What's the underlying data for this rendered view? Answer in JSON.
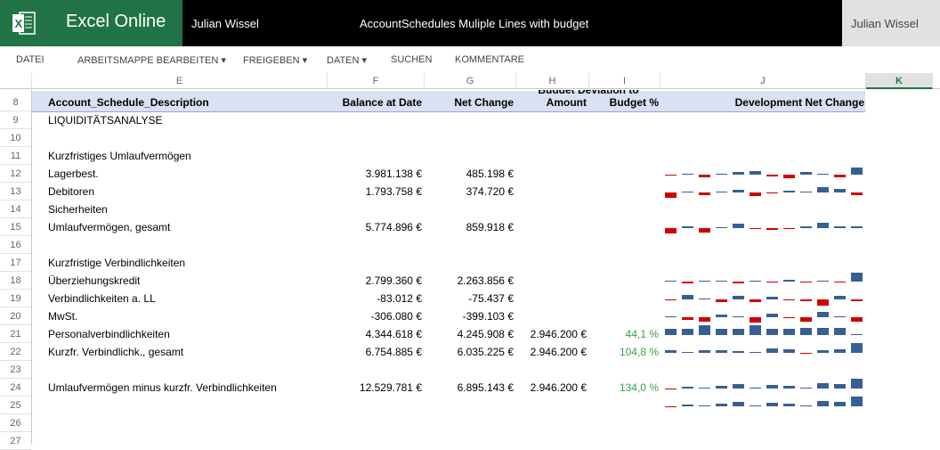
{
  "app": {
    "name": "Excel Online",
    "user": "Julian Wissel",
    "document_title": "AccountSchedules Muliple Lines with budget",
    "user_button": "Julian Wissel"
  },
  "menu": [
    {
      "label": "DATEI"
    },
    {
      "label": "ARBEITSMAPPE BEARBEITEN ▾"
    },
    {
      "label": "FREIGEBEN ▾"
    },
    {
      "label": "DATEN ▾"
    },
    {
      "label": "SUCHEN"
    },
    {
      "label": "KOMMENTARE"
    }
  ],
  "columns": [
    "E",
    "F",
    "G",
    "H",
    "I",
    "J",
    "K"
  ],
  "selected_column": "K",
  "row_numbers": [
    "8",
    "9",
    "10",
    "11",
    "12",
    "13",
    "14",
    "15",
    "16",
    "17",
    "18",
    "19",
    "20",
    "21",
    "22",
    "23",
    "24",
    "25",
    "26",
    "27"
  ],
  "header": {
    "description": "Account_Schedule_Description",
    "balance": "Balance at Date",
    "net_change": "Net Change",
    "budget_group": "Budget Deviation to",
    "amount": "Amount",
    "budget_pct": "Budget %",
    "development": "Development Net Change"
  },
  "rows": [
    {
      "row": "9",
      "desc": "LIQUIDITÄTSANALYSE"
    },
    {
      "row": "10",
      "desc": ""
    },
    {
      "row": "11",
      "desc": "Kurzfristiges Umlaufvermögen"
    },
    {
      "row": "12",
      "desc": "Lagerbest.",
      "balance": "3.981.138 €",
      "net": "485.198 €",
      "spark": [
        -1,
        1,
        -3,
        1,
        3,
        4,
        -2,
        -4,
        3,
        1,
        -3,
        8
      ]
    },
    {
      "row": "13",
      "desc": "Debitoren",
      "balance": "1.793.758 €",
      "net": "374.720 €",
      "spark": [
        -6,
        1,
        -3,
        1,
        3,
        -4,
        -1,
        2,
        1,
        6,
        4,
        -3
      ]
    },
    {
      "row": "14",
      "desc": "Sicherheiten"
    },
    {
      "row": "15",
      "desc": "Umlaufvermögen, gesamt",
      "balance": "5.774.896 €",
      "net": "859.918 €",
      "spark": [
        -6,
        2,
        -5,
        1,
        5,
        -1,
        -2,
        -1,
        2,
        6,
        2,
        2
      ]
    },
    {
      "row": "16",
      "desc": ""
    },
    {
      "row": "17",
      "desc": "Kurzfristige Verbindlichkeiten"
    },
    {
      "row": "18",
      "desc": "Überziehungskredit",
      "balance": "2.799.360 €",
      "net": "2.263.856 €",
      "spark": [
        1,
        -2,
        1,
        1,
        -2,
        1,
        -1,
        2,
        -1,
        1,
        -1,
        10
      ]
    },
    {
      "row": "19",
      "desc": "Verbindlichkeiten a. LL",
      "balance": "-83.012 €",
      "net": "-75.437 €",
      "spark": [
        -1,
        5,
        1,
        -3,
        4,
        -3,
        3,
        -1,
        -2,
        -7,
        4,
        -2
      ]
    },
    {
      "row": "20",
      "desc": "MwSt.",
      "balance": "-306.080 €",
      "net": "-399.103 €",
      "spark": [
        1,
        -3,
        -5,
        3,
        1,
        -6,
        4,
        -1,
        -5,
        6,
        1,
        -5
      ]
    },
    {
      "row": "21",
      "desc": "Personalverbindlichkeiten",
      "balance": "4.344.618 €",
      "net": "4.245.908 €",
      "amount": "2.946.200 €",
      "pct": "44,1 %",
      "spark": [
        7,
        7,
        12,
        7,
        7,
        12,
        7,
        7,
        8,
        8,
        8,
        1
      ]
    },
    {
      "row": "22",
      "desc": "Kurzfr. Verbindlichk., gesamt",
      "balance": "6.754.885 €",
      "net": "6.035.225 €",
      "amount": "2.946.200 €",
      "pct": "104,8 %",
      "spark": [
        3,
        1,
        3,
        3,
        2,
        1,
        5,
        4,
        -1,
        3,
        4,
        11
      ]
    },
    {
      "row": "23",
      "desc": ""
    },
    {
      "row": "24",
      "desc": "Umlaufvermögen minus kurzfr. Verbindlichkeiten",
      "balance": "12.529.781 €",
      "net": "6.895.143 €",
      "amount": "2.946.200 €",
      "pct": "134,0 %",
      "spark": [
        -1,
        2,
        1,
        3,
        5,
        1,
        4,
        3,
        1,
        6,
        5,
        11
      ]
    },
    {
      "row": "25",
      "desc": "",
      "spark": [
        -1,
        2,
        1,
        3,
        5,
        1,
        4,
        3,
        1,
        6,
        5,
        11
      ]
    }
  ],
  "colors": {
    "brand": "#217346",
    "positive": "#376092",
    "negative": "#d00000",
    "percent": "#3aa04a",
    "header_band": "#d9e1f2"
  }
}
